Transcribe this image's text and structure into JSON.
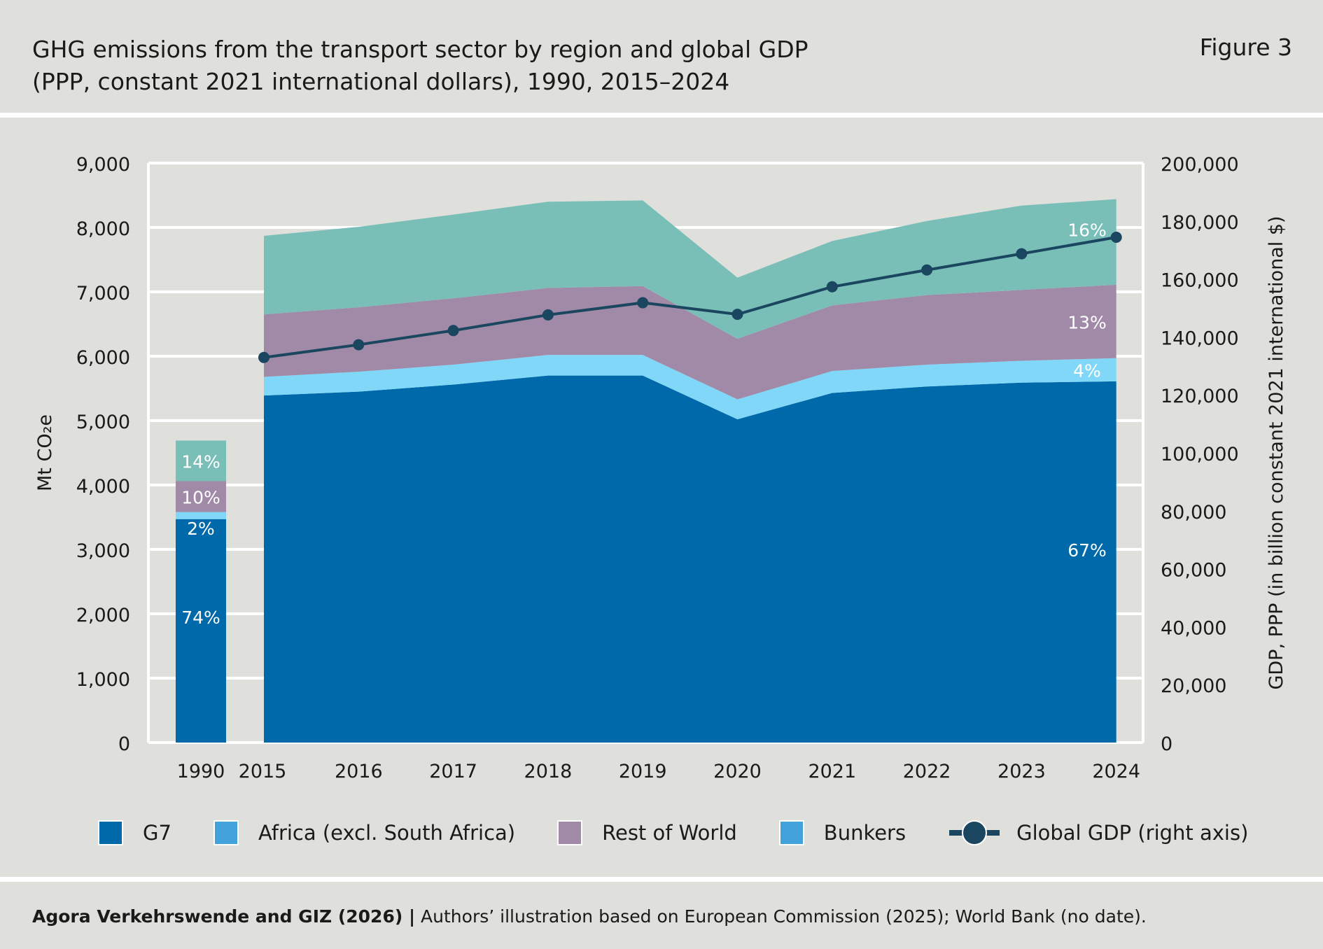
{
  "header": {
    "title_line1": "GHG emissions from the transport sector by region and global GDP",
    "title_line2": "(PPP, constant 2021 international dollars), 1990, 2015–2024",
    "figure": "Figure 3"
  },
  "chart_data": {
    "type": "area",
    "categories": [
      "1990",
      "2015",
      "2016",
      "2017",
      "2018",
      "2019",
      "2020",
      "2021",
      "2022",
      "2023",
      "2024"
    ],
    "ylabel": "Mt CO₂e",
    "y2label": "GDP, PPP (in billion constant 2021 international $)",
    "ylim": [
      0,
      9000
    ],
    "y2lim": [
      0,
      200000
    ],
    "yticks": [
      "0",
      "1,000",
      "2,000",
      "3,000",
      "4,000",
      "5,000",
      "6,000",
      "7,000",
      "8,000",
      "9,000"
    ],
    "y2ticks": [
      "0",
      "20,000",
      "40,000",
      "60,000",
      "80,000",
      "100,000",
      "120,000",
      "140,000",
      "160,000",
      "180,000",
      "200,000"
    ],
    "grid": true,
    "note": "1990 shown as stacked bar; 2015–2024 as stacked area",
    "series": [
      {
        "name": "G7",
        "color": "#0069aa",
        "legend_color": "#0069aa",
        "values": [
          3470,
          5390,
          5450,
          5560,
          5700,
          5700,
          5020,
          5430,
          5530,
          5590,
          5610
        ]
      },
      {
        "name": "Africa (excl. South Africa)",
        "color": "#80d7f8",
        "legend_color": "#42a3dc",
        "values": [
          110,
          290,
          310,
          310,
          320,
          320,
          310,
          340,
          340,
          340,
          360
        ]
      },
      {
        "name": "Rest of World",
        "color": "#a18aa8",
        "legend_color": "#a18aa8",
        "values": [
          480,
          970,
          1000,
          1030,
          1040,
          1070,
          940,
          1020,
          1080,
          1100,
          1140
        ]
      },
      {
        "name": "Bunkers",
        "color": "#79bfb8",
        "legend_color": "#42a3dc",
        "values": [
          630,
          1220,
          1250,
          1300,
          1340,
          1330,
          950,
          1000,
          1150,
          1310,
          1330
        ]
      }
    ],
    "line": {
      "name": "Global GDP (right axis)",
      "color": "#1b4660",
      "values": [
        null,
        132900,
        137300,
        142200,
        147600,
        151800,
        147800,
        157300,
        163100,
        168700,
        174400
      ]
    },
    "annotations": {
      "1990": [
        "74%",
        "2%",
        "10%",
        "14%"
      ],
      "2024": [
        "67%",
        "4%",
        "13%",
        "16%"
      ]
    }
  },
  "source": {
    "bold": "Agora Verkehrswende and GIZ (2026) |",
    "text": " Authors’ illustration based on European Commission (2025); World Bank (no date)."
  }
}
